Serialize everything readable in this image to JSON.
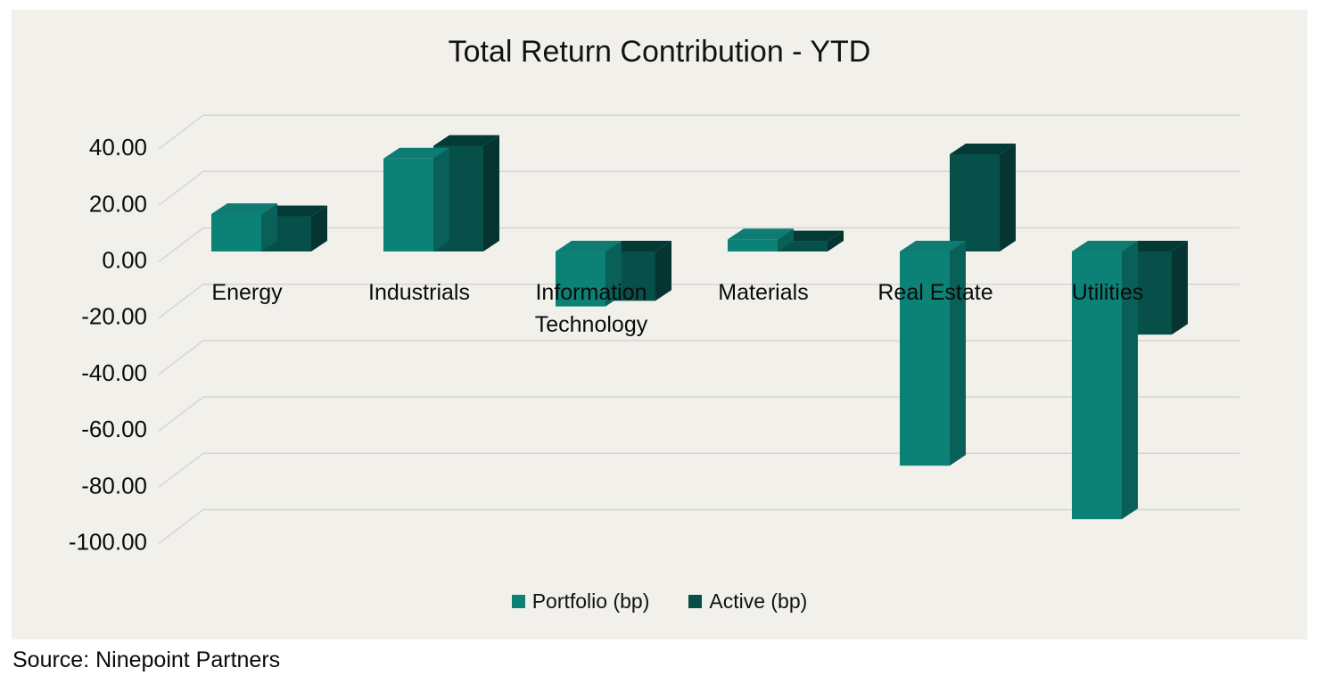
{
  "chart": {
    "title": "Total Return Contribution - YTD",
    "background_color": "#F1F0EB",
    "gridline_color": "#D6D5D1",
    "source_note": "Source: Ninepoint Partners"
  },
  "chart_data": {
    "type": "bar",
    "subtype": "3d-clustered-column",
    "title": "Total Return Contribution - YTD",
    "categories": [
      "Energy",
      "Industrials",
      "Information Technology",
      "Materials",
      "Real Estate",
      "Utilities"
    ],
    "series": [
      {
        "name": "Portfolio (bp)",
        "color": "#0C8176",
        "top_color": "#0E7C72",
        "side_color": "#086058",
        "values": [
          13.3,
          33.0,
          -19.5,
          4.3,
          -76.0,
          -95.0
        ]
      },
      {
        "name": "Active (bp)",
        "color": "#07504A",
        "top_color": "#043A36",
        "side_color": "#053431",
        "values": [
          12.5,
          37.5,
          -17.5,
          3.6,
          34.5,
          -29.5
        ]
      }
    ],
    "ylabel": "",
    "xlabel": "",
    "ylim": [
      -100,
      40
    ],
    "ytick_step": 20,
    "ytick_values": [
      40,
      20,
      0,
      -20,
      -40,
      -60,
      -80,
      -100
    ],
    "ytick_labels": [
      "40.00",
      "20.00",
      "0.00",
      "-20.00",
      "-40.00",
      "-60.00",
      "-80.00",
      "-100.00"
    ],
    "grid": true,
    "legend_position": "bottom"
  }
}
